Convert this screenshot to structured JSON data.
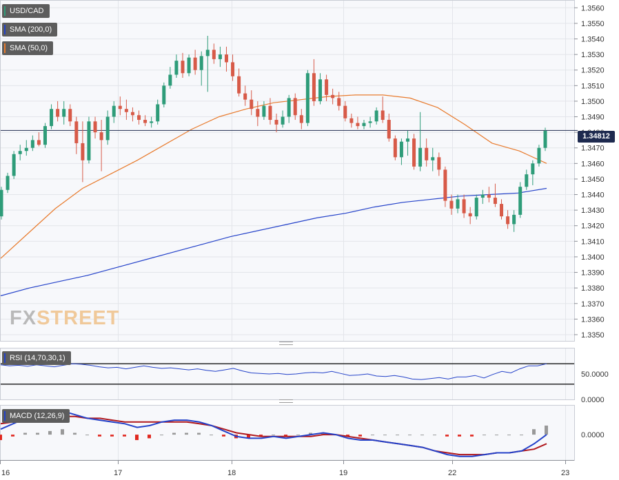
{
  "legends": {
    "symbol": "USD/CAD",
    "sma200": "SMA (200,0)",
    "sma50": "SMA (50,0)",
    "rsi": "RSI (14,70,30,1)",
    "macd": "MACD (12,26,9)"
  },
  "price_tag": "1.34812",
  "logo": {
    "fx": "FX",
    "street": "STREET"
  },
  "colors": {
    "up": "#2e9c79",
    "down": "#d75a48",
    "sma200": "#2341c9",
    "sma50": "#e87a2c",
    "rsi": "#2341c9",
    "macd_line": "#2341c9",
    "signal_line": "#b0181d",
    "hist_pos": "#999999",
    "hist_neg": "#e0281f",
    "price_line": "#1e2a4f",
    "legend_bg": "#5d5d5d"
  },
  "chart_data": [
    {
      "type": "candlestick",
      "title": "USD/CAD",
      "x_labels": [
        "16",
        "17",
        "18",
        "19",
        "22",
        "23"
      ],
      "y_ticks": [
        "1.3560",
        "1.3550",
        "1.3540",
        "1.3530",
        "1.3520",
        "1.3510",
        "1.3500",
        "1.3490",
        "1.3480",
        "1.3470",
        "1.3460",
        "1.3450",
        "1.3440",
        "1.3430",
        "1.3420",
        "1.3410",
        "1.3400",
        "1.3390",
        "1.3380",
        "1.3370",
        "1.3360",
        "1.3350"
      ],
      "ylim": [
        1.3346,
        1.3565
      ],
      "last_price": 1.34812,
      "candles_approx": [
        [
          1.3426,
          1.3445,
          1.3424,
          1.3443
        ],
        [
          1.3443,
          1.3454,
          1.3441,
          1.3452
        ],
        [
          1.3452,
          1.3468,
          1.345,
          1.3466
        ],
        [
          1.3466,
          1.3472,
          1.3462,
          1.3468
        ],
        [
          1.3468,
          1.3475,
          1.3465,
          1.347
        ],
        [
          1.347,
          1.3478,
          1.3468,
          1.3475
        ],
        [
          1.3475,
          1.348,
          1.3471,
          1.3472
        ],
        [
          1.3472,
          1.3486,
          1.347,
          1.3484
        ],
        [
          1.3484,
          1.3498,
          1.3482,
          1.3495
        ],
        [
          1.3495,
          1.35,
          1.3487,
          1.349
        ],
        [
          1.349,
          1.35,
          1.3485,
          1.3495
        ],
        [
          1.3495,
          1.3498,
          1.3484,
          1.3487
        ],
        [
          1.3487,
          1.349,
          1.3466,
          1.3473
        ],
        [
          1.3473,
          1.3487,
          1.3448,
          1.3462
        ],
        [
          1.3462,
          1.349,
          1.346,
          1.3487
        ],
        [
          1.3487,
          1.349,
          1.3476,
          1.348
        ],
        [
          1.348,
          1.3488,
          1.3455,
          1.3475
        ],
        [
          1.3475,
          1.3494,
          1.3472,
          1.349
        ],
        [
          1.349,
          1.35,
          1.3486,
          1.3497
        ],
        [
          1.3497,
          1.3503,
          1.3491,
          1.3495
        ],
        [
          1.3495,
          1.3501,
          1.3488,
          1.3493
        ],
        [
          1.3493,
          1.3496,
          1.3487,
          1.3491
        ],
        [
          1.3491,
          1.3494,
          1.3485,
          1.3488
        ],
        [
          1.3488,
          1.3491,
          1.3484,
          1.3486
        ],
        [
          1.3486,
          1.349,
          1.3483,
          1.3487
        ],
        [
          1.3487,
          1.3501,
          1.3485,
          1.3498
        ],
        [
          1.3498,
          1.3512,
          1.3496,
          1.351
        ],
        [
          1.351,
          1.3522,
          1.3508,
          1.3517
        ],
        [
          1.3517,
          1.353,
          1.3515,
          1.3526
        ],
        [
          1.3526,
          1.3531,
          1.3515,
          1.3518
        ],
        [
          1.3518,
          1.353,
          1.3516,
          1.3528
        ],
        [
          1.3528,
          1.3533,
          1.3517,
          1.352
        ],
        [
          1.352,
          1.3532,
          1.351,
          1.3529
        ],
        [
          1.3529,
          1.3542,
          1.3506,
          1.3533
        ],
        [
          1.3533,
          1.3537,
          1.3524,
          1.3527
        ],
        [
          1.3527,
          1.3535,
          1.3522,
          1.353
        ],
        [
          1.353,
          1.3535,
          1.3519,
          1.3525
        ],
        [
          1.3525,
          1.353,
          1.3513,
          1.3516
        ],
        [
          1.3516,
          1.3521,
          1.3503,
          1.3505
        ],
        [
          1.3505,
          1.351,
          1.3497,
          1.3501
        ],
        [
          1.3501,
          1.3507,
          1.3491,
          1.3495
        ],
        [
          1.3495,
          1.35,
          1.3484,
          1.349
        ],
        [
          1.349,
          1.35,
          1.3488,
          1.3497
        ],
        [
          1.3497,
          1.3502,
          1.3485,
          1.3488
        ],
        [
          1.3488,
          1.3492,
          1.348,
          1.3485
        ],
        [
          1.3485,
          1.3494,
          1.3483,
          1.349
        ],
        [
          1.349,
          1.3504,
          1.3486,
          1.3502
        ],
        [
          1.3502,
          1.3505,
          1.3488,
          1.3491
        ],
        [
          1.3491,
          1.3495,
          1.3482,
          1.3486
        ],
        [
          1.3486,
          1.352,
          1.3484,
          1.3518
        ],
        [
          1.3518,
          1.3527,
          1.3497,
          1.35
        ],
        [
          1.35,
          1.3518,
          1.3498,
          1.3514
        ],
        [
          1.3514,
          1.3517,
          1.35,
          1.3504
        ],
        [
          1.3504,
          1.3508,
          1.3498,
          1.3502
        ],
        [
          1.3502,
          1.3506,
          1.3494,
          1.3497
        ],
        [
          1.3497,
          1.35,
          1.3487,
          1.3489
        ],
        [
          1.3489,
          1.3492,
          1.3483,
          1.3486
        ],
        [
          1.3486,
          1.349,
          1.3482,
          1.3484
        ],
        [
          1.3484,
          1.3488,
          1.3482,
          1.3486
        ],
        [
          1.3486,
          1.349,
          1.3483,
          1.3487
        ],
        [
          1.3487,
          1.3496,
          1.3485,
          1.3494
        ],
        [
          1.3494,
          1.3503,
          1.3486,
          1.3488
        ],
        [
          1.3488,
          1.3492,
          1.3474,
          1.3476
        ],
        [
          1.3476,
          1.3478,
          1.3462,
          1.3464
        ],
        [
          1.3464,
          1.3476,
          1.3459,
          1.3474
        ],
        [
          1.3474,
          1.3481,
          1.3465,
          1.3476
        ],
        [
          1.3476,
          1.3479,
          1.3456,
          1.3458
        ],
        [
          1.3458,
          1.3493,
          1.3455,
          1.347
        ],
        [
          1.347,
          1.3476,
          1.3458,
          1.3462
        ],
        [
          1.3462,
          1.347,
          1.3455,
          1.3464
        ],
        [
          1.3464,
          1.3467,
          1.3452,
          1.3456
        ],
        [
          1.3456,
          1.3458,
          1.3432,
          1.3436
        ],
        [
          1.3436,
          1.344,
          1.3427,
          1.3431
        ],
        [
          1.3431,
          1.344,
          1.3428,
          1.3437
        ],
        [
          1.3437,
          1.344,
          1.3425,
          1.3428
        ],
        [
          1.3428,
          1.3432,
          1.3421,
          1.3426
        ],
        [
          1.3426,
          1.344,
          1.3424,
          1.3438
        ],
        [
          1.3438,
          1.3443,
          1.3434,
          1.344
        ],
        [
          1.344,
          1.3445,
          1.3435,
          1.3438
        ],
        [
          1.3438,
          1.3447,
          1.3432,
          1.3434
        ],
        [
          1.3434,
          1.3437,
          1.3424,
          1.3426
        ],
        [
          1.3426,
          1.343,
          1.3418,
          1.3421
        ],
        [
          1.3421,
          1.343,
          1.3416,
          1.3427
        ],
        [
          1.3427,
          1.3448,
          1.3425,
          1.3445
        ],
        [
          1.3445,
          1.3456,
          1.3443,
          1.3453
        ],
        [
          1.3453,
          1.3462,
          1.3446,
          1.346
        ],
        [
          1.346,
          1.3472,
          1.3458,
          1.347
        ],
        [
          1.347,
          1.3483,
          1.3468,
          1.3481
        ]
      ],
      "series": [
        {
          "name": "SMA (200,0)",
          "values": [
            1.3375,
            1.338,
            1.3384,
            1.3388,
            1.3393,
            1.3398,
            1.3403,
            1.3408,
            1.3413,
            1.3417,
            1.3421,
            1.3425,
            1.3428,
            1.3432,
            1.3435,
            1.3437,
            1.3439,
            1.344,
            1.3441,
            1.3444
          ]
        },
        {
          "name": "SMA (50,0)",
          "values": [
            1.3399,
            1.3415,
            1.3431,
            1.3444,
            1.3453,
            1.3462,
            1.3472,
            1.3482,
            1.349,
            1.3495,
            1.3499,
            1.3501,
            1.3503,
            1.3504,
            1.3504,
            1.3502,
            1.3496,
            1.3485,
            1.3473,
            1.3468,
            1.346
          ]
        }
      ]
    },
    {
      "type": "line",
      "title": "RSI (14,70,30,1)",
      "y_ticks": [
        "50.0000",
        "0.0000"
      ],
      "levels": [
        70,
        30
      ],
      "ylim": [
        0,
        100
      ],
      "values": [
        68,
        66,
        67,
        65,
        68,
        66,
        64,
        67,
        70,
        69,
        67,
        64,
        62,
        63,
        60,
        63,
        66,
        63,
        61,
        62,
        60,
        58,
        60,
        57,
        55,
        58,
        61,
        56,
        52,
        51,
        50,
        51,
        49,
        50,
        52,
        53,
        52,
        55,
        51,
        47,
        48,
        50,
        46,
        45,
        47,
        44,
        40,
        39,
        41,
        43,
        40,
        44,
        44,
        47,
        42,
        49,
        55,
        52,
        60,
        66,
        66,
        70
      ]
    },
    {
      "type": "line",
      "title": "MACD (12,26,9)",
      "y_ticks": [
        "0.0000"
      ],
      "ylim": [
        -0.0014,
        0.0016
      ],
      "series": [
        {
          "name": "MACD",
          "values": [
            0.0003,
            0.0006,
            0.0009,
            0.001,
            0.0012,
            0.0013,
            0.0011,
            0.0009,
            0.0008,
            0.0007,
            0.0006,
            0.0004,
            0.0005,
            0.0007,
            0.0008,
            0.0008,
            0.0007,
            0.0005,
            0.0002,
            -0.0001,
            -0.0002,
            -0.0002,
            -0.0001,
            -0.0002,
            -0.0001,
            0.0,
            0.0001,
            0.0,
            -0.0002,
            -0.0003,
            -0.0003,
            -0.0004,
            -0.0005,
            -0.0006,
            -0.0007,
            -0.0009,
            -0.0011,
            -0.0012,
            -0.0012,
            -0.0011,
            -0.001,
            -0.001,
            -0.0009,
            -0.0005,
            0.0
          ]
        },
        {
          "name": "Signal",
          "values": [
            0.0006,
            0.0007,
            0.0008,
            0.0009,
            0.001,
            0.001,
            0.001,
            0.0009,
            0.0009,
            0.0008,
            0.0007,
            0.0007,
            0.0007,
            0.0007,
            0.0007,
            0.0007,
            0.0006,
            0.0005,
            0.0003,
            0.0001,
            0.0,
            -0.0001,
            -0.0001,
            -0.0001,
            -0.0001,
            -0.0001,
            0.0,
            0.0,
            -0.0001,
            -0.0002,
            -0.0003,
            -0.0004,
            -0.0005,
            -0.0006,
            -0.0007,
            -0.0009,
            -0.001,
            -0.0011,
            -0.0011,
            -0.0011,
            -0.001,
            -0.001,
            -0.0009,
            -0.0008,
            -0.0005
          ]
        }
      ]
    }
  ]
}
